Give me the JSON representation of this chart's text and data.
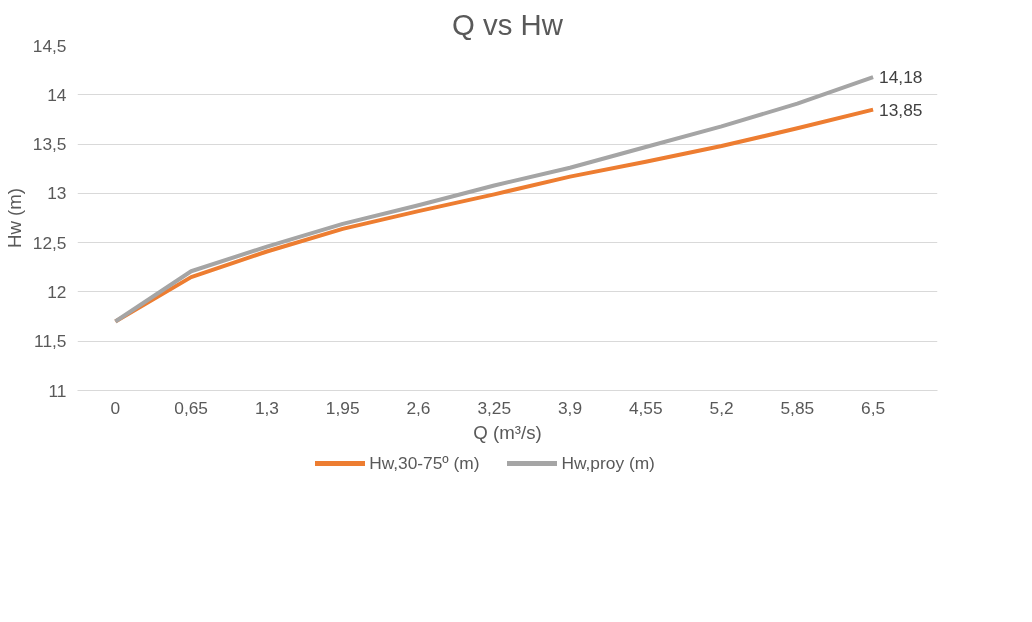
{
  "chart_data": {
    "type": "line",
    "title": "Q vs Hw",
    "xlabel": "Q (m³/s)",
    "ylabel": "Hw (m)",
    "categories": [
      "0",
      "0,65",
      "1,3",
      "1,95",
      "2,6",
      "3,25",
      "3,9",
      "4,55",
      "5,2",
      "5,85",
      "6,5"
    ],
    "series": [
      {
        "name": "Hw,30-75º (m)",
        "color": "#ed7d31",
        "values": [
          11.7,
          12.15,
          12.41,
          12.64,
          12.82,
          12.99,
          13.17,
          13.32,
          13.48,
          13.66,
          13.85
        ],
        "value_labels": [
          null,
          null,
          null,
          null,
          null,
          null,
          null,
          null,
          null,
          null,
          "13,85"
        ]
      },
      {
        "name": "Hw,proy (m)",
        "color": "#a5a5a5",
        "values": [
          11.7,
          12.21,
          12.46,
          12.69,
          12.88,
          13.08,
          13.26,
          13.47,
          13.68,
          13.91,
          14.18
        ],
        "value_labels": [
          null,
          null,
          null,
          null,
          null,
          null,
          null,
          null,
          null,
          null,
          "14,18"
        ]
      }
    ],
    "ylim": [
      11,
      14.5
    ],
    "yticks": [
      11,
      {
        "value": 11.5,
        "label": "11,5"
      },
      12,
      {
        "value": 12.5,
        "label": "12,5"
      },
      13,
      {
        "value": 13.5,
        "label": "13,5"
      },
      14,
      {
        "value": 14.5,
        "label": "14,5"
      }
    ],
    "grid": "y",
    "legend": "bottom",
    "marker": "none",
    "line_style": "solid"
  }
}
